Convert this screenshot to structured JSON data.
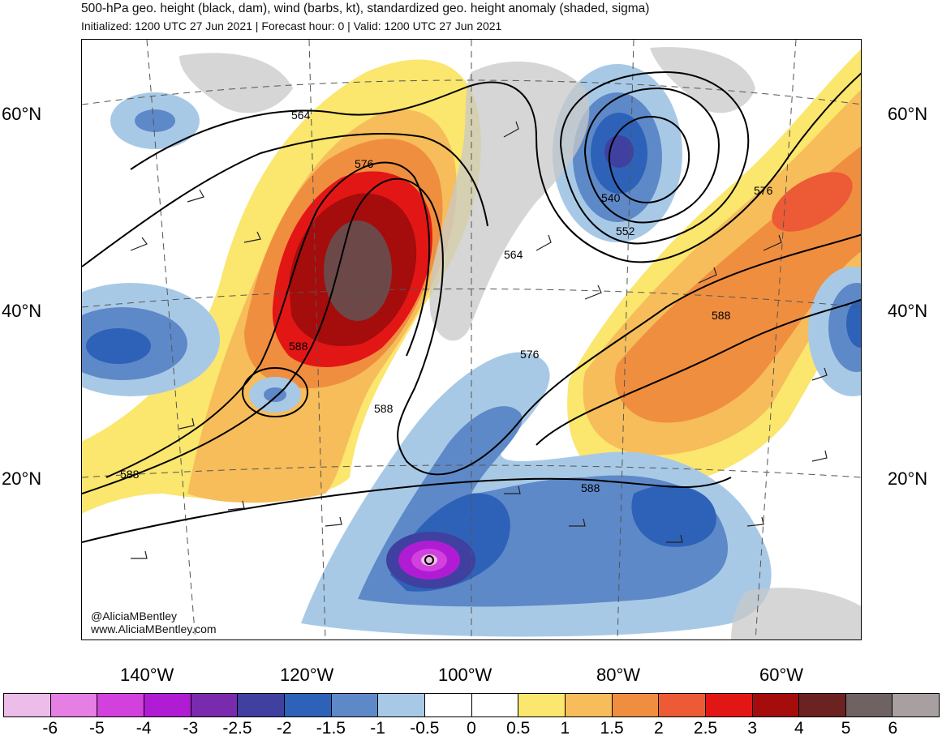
{
  "header": {
    "title": "500-hPa geo. height (black, dam), wind (barbs, kt), standardized geo. height anomaly (shaded, sigma)",
    "subtitle": "Initialized: 1200 UTC 27 Jun 2021 | Forecast hour: 0 | Valid: 1200 UTC 27 Jun 2021"
  },
  "map": {
    "lat_labels": [
      "60°N",
      "40°N",
      "20°N"
    ],
    "lon_labels": [
      "140°W",
      "120°W",
      "100°W",
      "80°W",
      "60°W"
    ],
    "contour_labels": [
      "564",
      "576",
      "588",
      "588",
      "588",
      "588",
      "540",
      "552",
      "564",
      "576",
      "576",
      "588"
    ],
    "credit_handle": "@AliciaMBentley",
    "credit_url": "www.AliciaMBentley.com"
  },
  "colorbar": {
    "labels": [
      "-6",
      "-5",
      "-4",
      "-3",
      "-2.5",
      "-2",
      "-1.5",
      "-1",
      "-0.5",
      "0",
      "0.5",
      "1",
      "1.5",
      "2",
      "2.5",
      "3",
      "4",
      "5",
      "6"
    ],
    "colors": [
      "#ecbde9",
      "#e57fe3",
      "#d241de",
      "#b01cd3",
      "#7a2aad",
      "#3f40a0",
      "#2e62b8",
      "#5e89c8",
      "#a8c9e6",
      "#ffffff",
      "#ffffff",
      "#fbe66e",
      "#f6bd5a",
      "#f08e40",
      "#ec5b35",
      "#e31616",
      "#a50c0c",
      "#6d2222",
      "#6f6262",
      "#a8a0a0"
    ]
  }
}
